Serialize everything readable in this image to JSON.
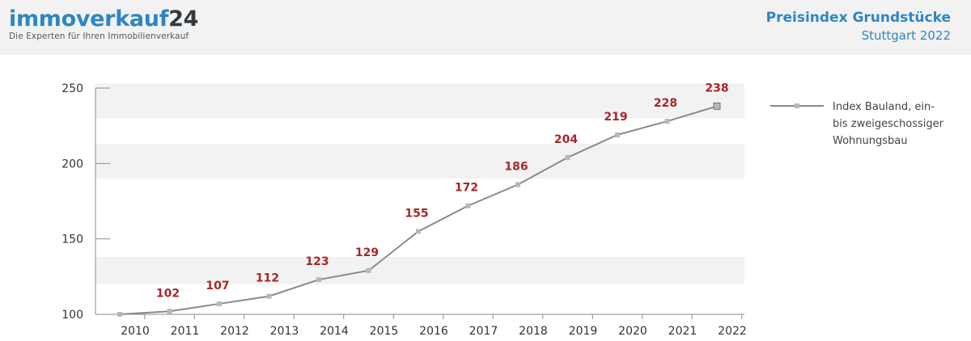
{
  "brand": {
    "name_part1": "immoverkauf",
    "name_part2": "24",
    "tagline": "Die Experten für Ihren Immobilienverkauf"
  },
  "title": {
    "line1": "Preisindex Grundstücke",
    "line2": "Stuttgart 2022"
  },
  "colors": {
    "brand_blue": "#2e86c1",
    "line": "#8a8a8a",
    "marker": "#b8b8b8",
    "data_label": "#a5282b",
    "band": "#f2f2f2",
    "header_bg": "#f2f2f2"
  },
  "chart_data": {
    "type": "line",
    "categories": [
      "2010",
      "2011",
      "2012",
      "2013",
      "2014",
      "2015",
      "2016",
      "2017",
      "2018",
      "2019",
      "2020",
      "2021",
      "2022"
    ],
    "series": [
      {
        "name": "Index Bauland, ein- bis zweigeschossiger Wohnungsbau",
        "legend_lines": [
          "Index Bauland, ein-",
          "bis zweigeschossiger",
          "Wohnungsbau"
        ],
        "values": [
          100,
          102,
          107,
          112,
          123,
          129,
          155,
          172,
          186,
          204,
          219,
          228,
          238
        ],
        "data_labels": [
          "",
          "102",
          "107",
          "112",
          "123",
          "129",
          "155",
          "172",
          "186",
          "204",
          "219",
          "228",
          "238"
        ]
      }
    ],
    "ylim": [
      100,
      250
    ],
    "yticks": [
      "100",
      "150",
      "200",
      "250"
    ],
    "ytick_values": [
      100,
      150,
      200,
      250
    ],
    "bands": [
      [
        120,
        138
      ],
      [
        190,
        213
      ],
      [
        230,
        253
      ]
    ],
    "xlabel": "",
    "ylabel": "",
    "grid": false,
    "legend_position": "right"
  }
}
